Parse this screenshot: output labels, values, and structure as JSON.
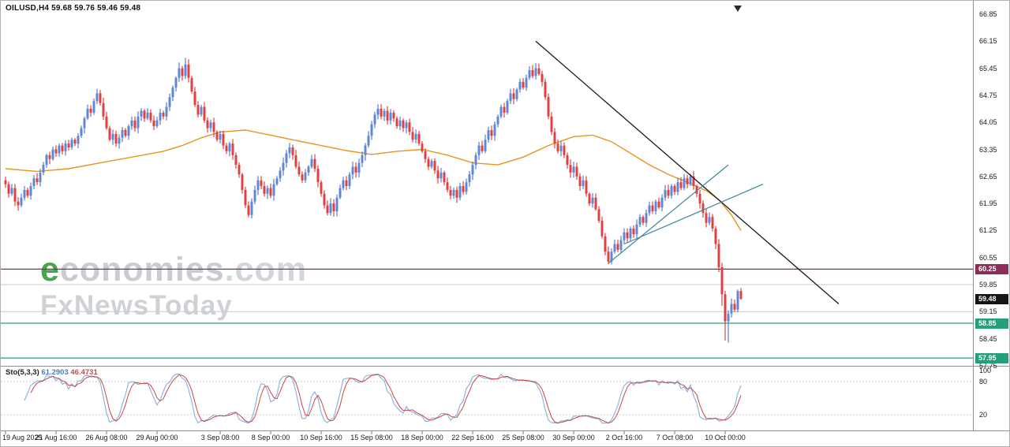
{
  "header": {
    "title": "OILUSD,H4 59.68 59.76 59.46 59.48"
  },
  "watermark": {
    "lead": "e",
    "rest": "conomies",
    "suffix": ".com",
    "line2": "FxNewsToday"
  },
  "indicator": {
    "name": "Sto(5,3,3)",
    "value_main": "61.2903",
    "value_signal": "46.4731"
  },
  "colors": {
    "up": "#5f87d8",
    "up_wick": "#3d63b8",
    "down": "#e14040",
    "down_wick": "#c22727",
    "ma": "#e8941e",
    "sto_main": "#8fb4e0",
    "sto_signal": "#cc4545",
    "badge_current": "#151515"
  },
  "chart_data": {
    "type": "candlestick",
    "symbol": "OILUSD",
    "timeframe": "H4",
    "ohlc_last": {
      "open": 59.68,
      "high": 59.76,
      "low": 59.46,
      "close": 59.48
    },
    "current_price": 59.48,
    "first_open": 62.55,
    "y_axis": {
      "ticks": [
        66.85,
        66.15,
        65.45,
        64.75,
        64.05,
        63.35,
        62.65,
        61.95,
        61.25,
        60.55,
        59.85,
        59.15,
        58.45,
        57.75
      ]
    },
    "sub_axis": {
      "indicator": "Stochastic(5,3,3)",
      "range": [
        0,
        100
      ],
      "ticks": [
        100,
        80,
        20
      ],
      "guides": [
        80,
        20
      ]
    },
    "x_axis": {
      "labels": [
        {
          "i": 0,
          "label": "19 Aug 2025"
        },
        {
          "i": 16,
          "label": "21 Aug 16:00"
        },
        {
          "i": 32,
          "label": "26 Aug 08:00"
        },
        {
          "i": 48,
          "label": "29 Aug 00:00"
        },
        {
          "i": 68,
          "label": "3 Sep 08:00"
        },
        {
          "i": 84,
          "label": "8 Sep 00:00"
        },
        {
          "i": 100,
          "label": "10 Sep 16:00"
        },
        {
          "i": 116,
          "label": "15 Sep 08:00"
        },
        {
          "i": 132,
          "label": "18 Sep 00:00"
        },
        {
          "i": 148,
          "label": "22 Sep 16:00"
        },
        {
          "i": 164,
          "label": "25 Sep 08:00"
        },
        {
          "i": 180,
          "label": "30 Sep 00:00"
        },
        {
          "i": 196,
          "label": "2 Oct 16:00"
        },
        {
          "i": 212,
          "label": "7 Oct 08:00"
        },
        {
          "i": 228,
          "label": "10 Oct 00:00"
        }
      ]
    },
    "closes": [
      62.45,
      62.2,
      62.35,
      62.0,
      61.9,
      62.1,
      62.3,
      62.15,
      62.4,
      62.6,
      62.5,
      62.75,
      62.95,
      63.2,
      63.1,
      63.35,
      63.25,
      63.45,
      63.3,
      63.5,
      63.4,
      63.6,
      63.5,
      63.7,
      63.9,
      64.15,
      64.4,
      64.3,
      64.6,
      64.8,
      64.55,
      64.2,
      63.9,
      63.6,
      63.75,
      63.5,
      63.65,
      63.85,
      63.7,
      63.95,
      64.1,
      63.9,
      64.2,
      64.35,
      64.15,
      64.3,
      64.1,
      63.95,
      64.1,
      64.3,
      64.2,
      64.45,
      64.7,
      64.95,
      65.2,
      65.45,
      65.25,
      65.55,
      65.2,
      64.85,
      64.5,
      64.25,
      64.45,
      64.1,
      63.9,
      64.05,
      63.8,
      63.6,
      63.75,
      63.45,
      63.3,
      63.5,
      63.2,
      62.95,
      62.7,
      62.3,
      61.9,
      61.65,
      62.0,
      62.3,
      62.55,
      62.4,
      62.2,
      62.35,
      62.15,
      62.45,
      62.6,
      62.8,
      63.0,
      63.25,
      63.4,
      63.2,
      62.9,
      62.7,
      62.55,
      62.75,
      62.9,
      63.1,
      62.85,
      62.5,
      62.2,
      61.9,
      61.7,
      61.95,
      61.75,
      62.1,
      62.35,
      62.55,
      62.4,
      62.7,
      62.9,
      62.75,
      63.0,
      63.2,
      63.45,
      63.7,
      64.0,
      64.25,
      64.4,
      64.2,
      64.35,
      64.1,
      64.3,
      64.15,
      63.95,
      64.1,
      63.9,
      64.05,
      63.8,
      63.6,
      63.75,
      63.5,
      63.3,
      63.1,
      62.9,
      63.05,
      62.8,
      62.6,
      62.75,
      62.5,
      62.3,
      62.15,
      62.3,
      62.1,
      62.4,
      62.25,
      62.5,
      62.7,
      62.95,
      63.2,
      63.45,
      63.3,
      63.6,
      63.85,
      63.7,
      64.0,
      64.2,
      64.45,
      64.3,
      64.6,
      64.8,
      64.65,
      64.9,
      65.1,
      64.95,
      65.2,
      65.4,
      65.25,
      65.45,
      65.3,
      65.1,
      64.7,
      64.2,
      63.8,
      63.5,
      63.3,
      63.45,
      63.2,
      62.95,
      62.75,
      62.9,
      62.65,
      62.4,
      62.55,
      62.2,
      61.95,
      62.1,
      61.8,
      61.5,
      61.1,
      60.7,
      60.45,
      60.7,
      60.9,
      60.75,
      61.0,
      61.2,
      61.05,
      61.3,
      61.15,
      61.4,
      61.6,
      61.45,
      61.7,
      61.9,
      61.75,
      62.0,
      61.85,
      62.1,
      62.3,
      62.15,
      62.4,
      62.25,
      62.5,
      62.35,
      62.6,
      62.45,
      62.65,
      62.4,
      62.2,
      61.95,
      61.7,
      61.45,
      61.6,
      61.3,
      60.9,
      60.3,
      59.6,
      58.9,
      59.1,
      59.35,
      59.2,
      59.68,
      59.48
    ],
    "wick_overrides": {
      "29": {
        "h": 64.92
      },
      "55": {
        "h": 65.6
      },
      "57": {
        "h": 65.72
      },
      "118": {
        "h": 64.52
      },
      "166": {
        "h": 65.5
      },
      "168": {
        "h": 65.58
      },
      "191": {
        "l": 60.38
      },
      "217": {
        "h": 62.72
      },
      "227": {
        "l": 59.3
      },
      "228": {
        "l": 58.4
      },
      "229": {
        "l": 58.35
      },
      "233": {
        "h": 59.76,
        "l": 59.46
      }
    },
    "ma_waypoints": [
      [
        0,
        62.85
      ],
      [
        10,
        62.78
      ],
      [
        20,
        62.85
      ],
      [
        30,
        63.0
      ],
      [
        40,
        63.15
      ],
      [
        50,
        63.3
      ],
      [
        56,
        63.45
      ],
      [
        62,
        63.65
      ],
      [
        68,
        63.8
      ],
      [
        76,
        63.85
      ],
      [
        84,
        63.72
      ],
      [
        92,
        63.58
      ],
      [
        100,
        63.45
      ],
      [
        108,
        63.32
      ],
      [
        116,
        63.22
      ],
      [
        124,
        63.3
      ],
      [
        132,
        63.35
      ],
      [
        140,
        63.2
      ],
      [
        148,
        63.0
      ],
      [
        156,
        62.95
      ],
      [
        164,
        63.15
      ],
      [
        172,
        63.45
      ],
      [
        180,
        63.68
      ],
      [
        186,
        63.72
      ],
      [
        192,
        63.55
      ],
      [
        198,
        63.25
      ],
      [
        204,
        62.95
      ],
      [
        210,
        62.7
      ],
      [
        216,
        62.5
      ],
      [
        222,
        62.28
      ],
      [
        226,
        62.05
      ],
      [
        230,
        61.65
      ],
      [
        233,
        61.25
      ]
    ],
    "trendlines": [
      {
        "name": "descending-trendline",
        "i1": 168,
        "p1": 66.15,
        "i2": 264,
        "p2": 59.35,
        "color": "#1a1a1a",
        "width": 1.3
      },
      {
        "name": "ascending-channel-upper",
        "i1": 191,
        "p1": 60.4,
        "i2": 229,
        "p2": 62.95,
        "color": "#3d87a0",
        "width": 1.2
      },
      {
        "name": "ascending-channel-lower",
        "i1": 196,
        "p1": 60.9,
        "i2": 240,
        "p2": 62.45,
        "color": "#3d87a0",
        "width": 1.2
      }
    ],
    "levels": [
      {
        "price": 60.25,
        "color": "#8b2f5a",
        "width": 1.2,
        "badge": true
      },
      {
        "price": 59.85,
        "color": "#c9c9c9",
        "width": 1,
        "badge": false
      },
      {
        "price": 59.15,
        "color": "#c9c9c9",
        "width": 1,
        "badge": false
      },
      {
        "price": 58.85,
        "color": "#259e7d",
        "width": 1.2,
        "badge": true
      },
      {
        "price": 57.95,
        "color": "#259e7d",
        "width": 1.2,
        "badge": true
      }
    ],
    "indicator_values": {
      "main": 61.2903,
      "signal": 46.4731
    }
  }
}
